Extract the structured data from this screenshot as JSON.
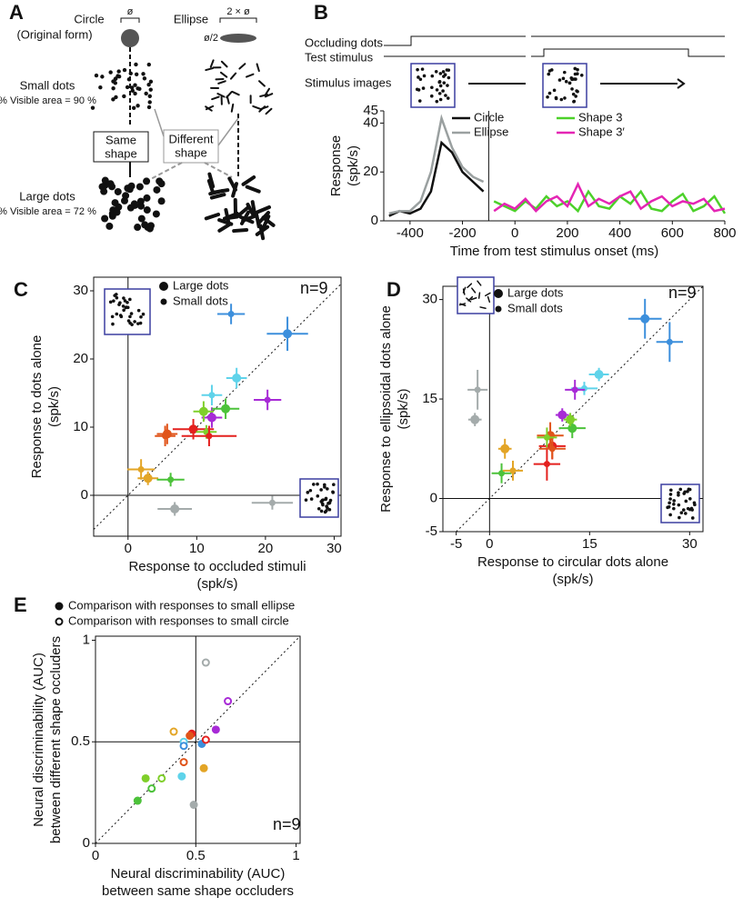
{
  "diagram": {
    "label": "A",
    "circle": [
      "Circle",
      "(Original form)"
    ],
    "ellipse": "Ellipse",
    "diameter": "ø",
    "double": "2 × ø",
    "half": "ø/2",
    "small_dots": [
      "Small dots",
      "% Visible area = 90 %"
    ],
    "same_shape": [
      "Same",
      "shape"
    ],
    "different_shape": [
      "Different",
      "shape"
    ],
    "large_dots": [
      "Large dots",
      "% Visible area = 72 %"
    ]
  },
  "chart_data": [
    {
      "type": "line",
      "label": "B",
      "annotations": [
        "Occluding dots",
        "Test stimulus",
        "Stimulus images"
      ],
      "xlabel": "Time from test stimulus onset (ms)",
      "ylabel": [
        "Response",
        "(spk/s)"
      ],
      "x": [
        -480,
        -440,
        -400,
        -360,
        -320,
        -280,
        -240,
        -200,
        -160,
        -120,
        -80,
        -40,
        0,
        40,
        80,
        120,
        160,
        200,
        240,
        280,
        320,
        360,
        400,
        440,
        480,
        520,
        560,
        600,
        640,
        680,
        720,
        760,
        800
      ],
      "xlim": [
        -500,
        800
      ],
      "xticks": [
        -400,
        -200,
        0,
        200,
        400,
        600,
        800
      ],
      "ylim": [
        0,
        45
      ],
      "yticks": [
        0,
        20,
        40,
        45
      ],
      "series": [
        {
          "name": "Circle",
          "color": "#111111",
          "values": [
            2,
            4,
            3,
            5,
            12,
            32,
            28,
            20,
            16,
            12,
            null,
            null,
            null,
            null,
            null,
            null,
            null,
            null,
            null,
            null,
            null,
            null,
            null,
            null,
            null,
            null,
            null,
            null,
            null,
            null,
            null,
            null,
            null
          ]
        },
        {
          "name": "Ellipse",
          "color": "#9aa0a0",
          "values": [
            3,
            4,
            4,
            8,
            20,
            42,
            30,
            22,
            18,
            16,
            null,
            null,
            null,
            null,
            null,
            null,
            null,
            null,
            null,
            null,
            null,
            null,
            null,
            null,
            null,
            null,
            null,
            null,
            null,
            null,
            null,
            null,
            null
          ]
        },
        {
          "name": "Shape 3",
          "color": "#4cd12a",
          "values": [
            null,
            null,
            null,
            null,
            null,
            null,
            null,
            null,
            null,
            null,
            8,
            6,
            4,
            8,
            5,
            10,
            6,
            8,
            4,
            12,
            6,
            5,
            10,
            7,
            12,
            5,
            4,
            8,
            11,
            4,
            6,
            10,
            3
          ]
        },
        {
          "name": "Shape 3′",
          "color": "#e425b4",
          "values": [
            null,
            null,
            null,
            null,
            null,
            null,
            null,
            null,
            null,
            null,
            4,
            7,
            5,
            9,
            4,
            8,
            10,
            6,
            15,
            6,
            9,
            7,
            10,
            12,
            5,
            8,
            10,
            6,
            8,
            7,
            9,
            4,
            5
          ]
        }
      ]
    },
    {
      "type": "scatter",
      "label": "C",
      "annotation": "n=9",
      "xlabel": [
        "Response to occluded stimuli",
        "(spk/s)"
      ],
      "ylabel": [
        "Response to dots alone",
        "(spk/s)"
      ],
      "xlim": [
        -5,
        31
      ],
      "xticks": [
        0,
        10,
        20,
        30
      ],
      "ylim": [
        -6,
        32
      ],
      "yticks": [
        0,
        10,
        20,
        30
      ],
      "reflines": [
        0
      ],
      "diagonal": true,
      "series": [
        {
          "name": "Large dots",
          "marker": "large",
          "x": [
            23.2,
            15.8,
            12.2,
            14.2,
            11.0,
            9.5,
            5.7,
            2.9,
            6.8
          ],
          "values": [
            23.7,
            17.2,
            11.4,
            12.7,
            12.3,
            9.7,
            9.0,
            2.5,
            -2.0
          ],
          "xerr": [
            3,
            1.5,
            1.5,
            2,
            1.5,
            3,
            1.5,
            1.5,
            2.5
          ],
          "yerr": [
            2.5,
            1.5,
            1.5,
            1.5,
            1.5,
            1.5,
            1.5,
            1,
            1
          ],
          "colors": [
            "#3c8fdc",
            "#5fd3ea",
            "#a72ad6",
            "#4cc23a",
            "#7fcf2a",
            "#e4201e",
            "#e0541a",
            "#e3a526",
            "#a4abab"
          ]
        },
        {
          "name": "Small dots",
          "marker": "small",
          "x": [
            15,
            12.2,
            20.3,
            6.2,
            11.4,
            11.8,
            5.4,
            1.9,
            21
          ],
          "values": [
            26.6,
            14.7,
            14.0,
            2.3,
            9.3,
            8.7,
            8.7,
            3.8,
            -1.1
          ],
          "xerr": [
            2,
            1.5,
            2,
            2,
            1.5,
            4,
            1.5,
            2,
            3
          ],
          "yerr": [
            1.5,
            1.5,
            1.5,
            1,
            1,
            1.5,
            1.5,
            1.5,
            1
          ],
          "colors": [
            "#3c8fdc",
            "#5fd3ea",
            "#a72ad6",
            "#4cc23a",
            "#7fcf2a",
            "#e4201e",
            "#e0541a",
            "#e3a526",
            "#a4abab"
          ]
        }
      ]
    },
    {
      "type": "scatter",
      "label": "D",
      "annotation": "n=9",
      "xlabel": [
        "Response to circular dots alone",
        "(spk/s)"
      ],
      "ylabel": [
        "Response to ellipsoidal dots alone",
        "(spk/s)"
      ],
      "xlim": [
        -7,
        32
      ],
      "xticks": [
        -5,
        0,
        15,
        30
      ],
      "ylim": [
        -5,
        32
      ],
      "yticks": [
        -5,
        0,
        15,
        30
      ],
      "reflines": [
        0
      ],
      "diagonal": true,
      "series": [
        {
          "name": "Large dots",
          "marker": "large",
          "x": [
            23.3,
            16.4,
            10.9,
            12.4,
            12.1,
            9.4,
            9.1,
            2.3,
            -2.2
          ],
          "values": [
            27.1,
            18.7,
            12.6,
            10.6,
            11.9,
            7.9,
            9.5,
            7.5,
            11.9
          ],
          "xerr": [
            2.5,
            1.5,
            1,
            2,
            1,
            2,
            2,
            1,
            1
          ],
          "yerr": [
            3,
            1,
            1,
            1.5,
            1,
            2,
            2,
            1.5,
            1
          ],
          "colors": [
            "#3c8fdc",
            "#5fd3ea",
            "#a72ad6",
            "#4cc23a",
            "#7fcf2a",
            "#e4201e",
            "#e0541a",
            "#e3a526",
            "#a4abab"
          ]
        },
        {
          "name": "Small dots",
          "marker": "small",
          "x": [
            27,
            14.2,
            12.8,
            1.8,
            8.6,
            8.6,
            9.4,
            3.5,
            -1.8
          ],
          "values": [
            23.6,
            16.6,
            16.4,
            3.8,
            9.2,
            5.2,
            7.5,
            4.2,
            16.4
          ],
          "xerr": [
            2,
            2,
            1.5,
            1.5,
            1.5,
            2,
            2,
            1.5,
            1.5
          ],
          "yerr": [
            3,
            1,
            1.5,
            1.5,
            1.5,
            2.5,
            1.5,
            1.5,
            3
          ],
          "colors": [
            "#3c8fdc",
            "#5fd3ea",
            "#a72ad6",
            "#4cc23a",
            "#7fcf2a",
            "#e4201e",
            "#e0541a",
            "#e3a526",
            "#a4abab"
          ]
        }
      ]
    },
    {
      "type": "scatter",
      "label": "E",
      "annotation": "n=9",
      "xlabel": [
        "Neural discriminability (AUC)",
        "between same shape occluders"
      ],
      "ylabel": [
        "Neural discriminability (AUC)",
        "between different shape occluders"
      ],
      "xlim": [
        0,
        1.02
      ],
      "xticks": [
        0,
        0.5,
        1
      ],
      "ylim": [
        0,
        1.02
      ],
      "yticks": [
        0,
        0.5,
        1
      ],
      "reflines": [
        0.5
      ],
      "diagonal": true,
      "series": [
        {
          "name": "Comparison with responses to small ellipse",
          "marker": "filled",
          "x": [
            0.49,
            0.54,
            0.43,
            0.53,
            0.48,
            0.47,
            0.6,
            0.21,
            0.25
          ],
          "values": [
            0.19,
            0.37,
            0.33,
            0.49,
            0.54,
            0.53,
            0.56,
            0.21,
            0.32
          ],
          "colors": [
            "#a4abab",
            "#e3a526",
            "#5fd3ea",
            "#3c8fdc",
            "#e4201e",
            "#e0541a",
            "#a72ad6",
            "#4cc23a",
            "#7fcf2a"
          ]
        },
        {
          "name": "Comparison with responses to small circle",
          "marker": "open",
          "x": [
            0.55,
            0.66,
            0.39,
            0.44,
            0.44,
            0.55,
            0.44,
            0.28,
            0.33
          ],
          "values": [
            0.89,
            0.7,
            0.55,
            0.5,
            0.48,
            0.51,
            0.4,
            0.27,
            0.32
          ],
          "colors": [
            "#a4abab",
            "#a72ad6",
            "#e3a526",
            "#5fd3ea",
            "#3c8fdc",
            "#e4201e",
            "#e0541a",
            "#4cc23a",
            "#7fcf2a"
          ]
        }
      ]
    }
  ]
}
